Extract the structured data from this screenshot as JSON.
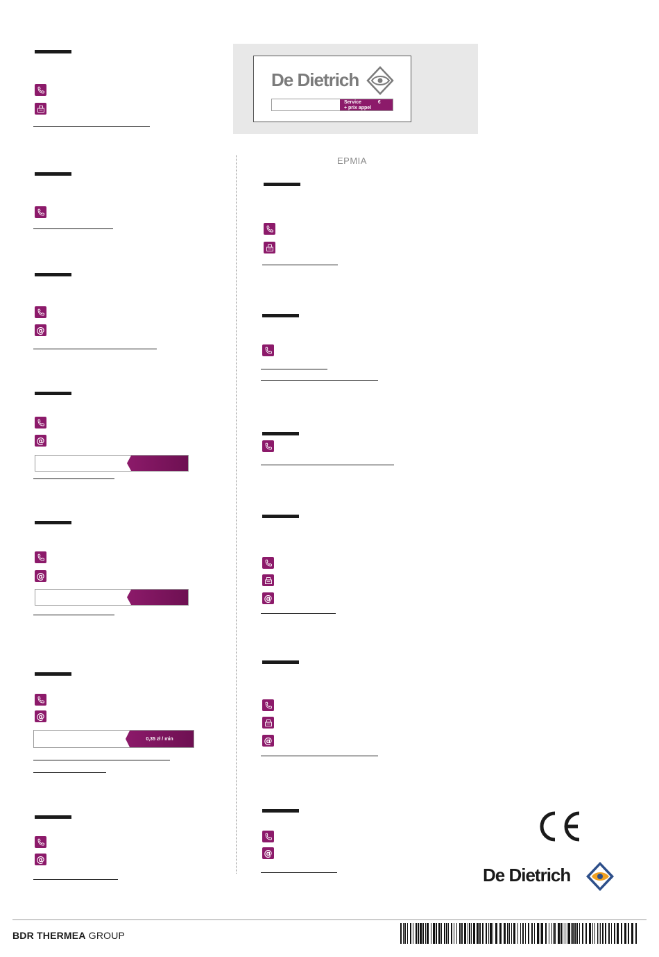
{
  "promo": {
    "brand": "De Dietrich",
    "service_line1": "Service",
    "service_currency": "€",
    "service_line2": "+ prix appel"
  },
  "greek_heading": "ΕΡΜΙΑ",
  "price_label": "0,35 zł / min",
  "brand_logo": {
    "text": "De Dietrich"
  },
  "footer": {
    "group_bold": "BDR THERMEA",
    "group_rest": " GROUP"
  },
  "colors": {
    "accent": "#8c1a6a",
    "text": "#1a1a1a",
    "promo_bg": "#e8e8e8"
  },
  "icons": [
    "phone-icon",
    "fax-icon",
    "email-icon"
  ]
}
